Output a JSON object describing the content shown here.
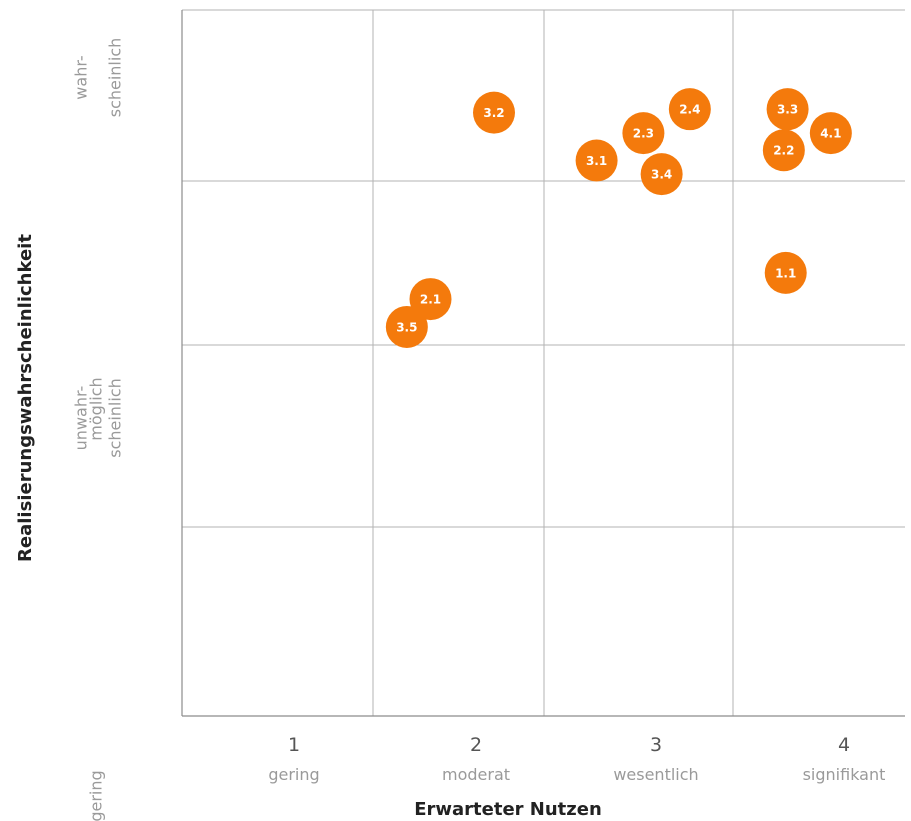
{
  "chart_data": {
    "type": "scatter",
    "title": "",
    "xlabel": "Erwarteter Nutzen",
    "ylabel": "Realisierungswahrscheinlichkeit",
    "x_categories": [
      {
        "value": "1",
        "label": "gering"
      },
      {
        "value": "2",
        "label": "moderat"
      },
      {
        "value": "3",
        "label": "wesentlich"
      },
      {
        "value": "4",
        "label": "signifikant"
      }
    ],
    "y_categories": [
      {
        "lines": [
          "sehr gering"
        ]
      },
      {
        "lines": [
          "unwahr-",
          "scheinlich"
        ]
      },
      {
        "lines": [
          "möglich"
        ]
      },
      {
        "lines": [
          "wahr-",
          "scheinlich"
        ]
      }
    ],
    "xlim": [
      0.5,
      4.5
    ],
    "ylim": [
      0.5,
      4.5
    ],
    "grid": true,
    "point_color": "#f47a0c",
    "points": [
      {
        "label": "3.1",
        "x": 2.67,
        "y": 4.38
      },
      {
        "label": "3.4",
        "x": 3.03,
        "y": 4.46
      },
      {
        "label": "2.3",
        "x": 2.93,
        "y": 4.22
      },
      {
        "label": "2.4",
        "x": 3.18,
        "y": 4.08
      },
      {
        "label": "3.2",
        "x": 2.1,
        "y": 4.1
      },
      {
        "label": "2.2",
        "x": 3.68,
        "y": 4.32
      },
      {
        "label": "4.1",
        "x": 3.93,
        "y": 4.22
      },
      {
        "label": "3.3",
        "x": 3.7,
        "y": 4.08
      },
      {
        "label": "3.5",
        "x": 1.62,
        "y": 3.39
      },
      {
        "label": "2.1",
        "x": 1.75,
        "y": 3.22
      },
      {
        "label": "1.1",
        "x": 3.69,
        "y": 3.06
      }
    ]
  }
}
